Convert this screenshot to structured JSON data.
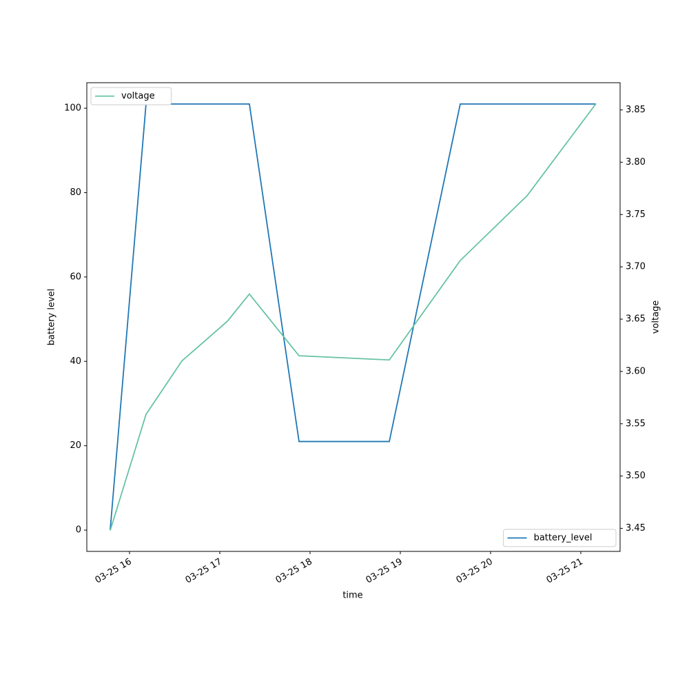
{
  "chart_data": {
    "type": "line",
    "xlabel": "time",
    "ylabel": "battery level",
    "y2label": "voltage",
    "xlim": [
      15.527,
      21.435
    ],
    "xticks": [
      {
        "value": 16,
        "label": "03-25 16"
      },
      {
        "value": 17,
        "label": "03-25 17"
      },
      {
        "value": 18,
        "label": "03-25 18"
      },
      {
        "value": 19,
        "label": "03-25 19"
      },
      {
        "value": 20,
        "label": "03-25 20"
      },
      {
        "value": 21,
        "label": "03-25 21"
      }
    ],
    "ylim": [
      -5.05,
      106.05
    ],
    "yticks": [
      0,
      20,
      40,
      60,
      80,
      100
    ],
    "y2lim": [
      3.428,
      3.876
    ],
    "y2ticks": [
      3.45,
      {
        "value": 3.5,
        "label": "3.50"
      },
      3.55,
      {
        "value": 3.6,
        "label": "3.60"
      },
      3.65,
      {
        "value": 3.7,
        "label": "3.70"
      },
      3.75,
      {
        "value": 3.8,
        "label": "3.80"
      },
      3.85
    ],
    "series": [
      {
        "name": "battery_level",
        "color": "#1f77b4",
        "legend_loc": "lower right",
        "x": [
          15.786,
          16.183,
          17.328,
          17.878,
          18.878,
          19.664,
          21.168
        ],
        "values": [
          0,
          101,
          101,
          21,
          21,
          101,
          101
        ]
      },
      {
        "name": "voltage",
        "color": "#66c2a5",
        "axis": "y2",
        "legend_loc": "upper left",
        "x": [
          15.786,
          16.183,
          16.58,
          17.084,
          17.328,
          17.878,
          18.878,
          19.664,
          20.405,
          21.168
        ],
        "values": [
          3.448,
          3.559,
          3.61,
          3.648,
          3.674,
          3.615,
          3.611,
          3.706,
          3.768,
          3.856
        ]
      }
    ]
  }
}
